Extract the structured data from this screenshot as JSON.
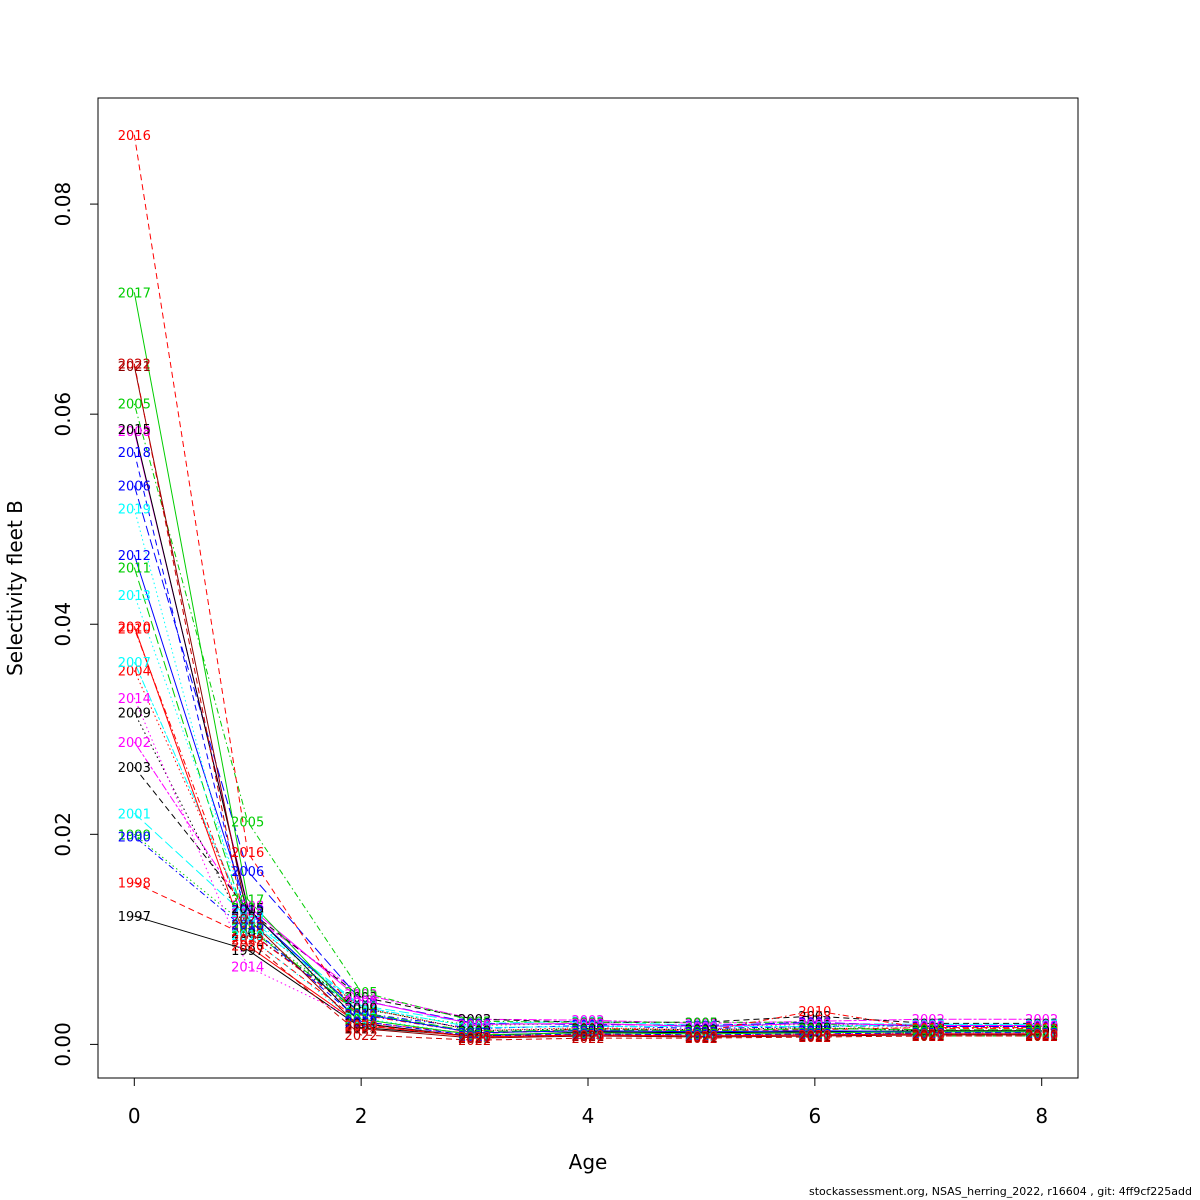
{
  "chart_data": {
    "type": "line",
    "xlabel": "Age",
    "ylabel": "Selectivity fleet B",
    "xlim": [
      -0.32,
      8.32
    ],
    "ylim": [
      -0.0032,
      0.0901
    ],
    "x_ticks": [
      "0",
      "2",
      "4",
      "6",
      "8"
    ],
    "y_ticks": [
      "0.00",
      "0.02",
      "0.04",
      "0.06",
      "0.08"
    ],
    "x": [
      0,
      1,
      2,
      3,
      4,
      5,
      6,
      7,
      8
    ],
    "grid": false,
    "legend": "none",
    "series": [
      {
        "name": "1997",
        "color": "#000000",
        "dash": "solid",
        "values": [
          0.0122,
          0.009,
          0.0016,
          0.0008,
          0.0012,
          0.0011,
          0.0012,
          0.0013,
          0.0013
        ]
      },
      {
        "name": "1998",
        "color": "#ff0000",
        "dash": "dashed",
        "values": [
          0.0154,
          0.0103,
          0.0021,
          0.001,
          0.0015,
          0.0013,
          0.0014,
          0.0016,
          0.0016
        ]
      },
      {
        "name": "1999",
        "color": "#00cd00",
        "dash": "dotted",
        "values": [
          0.02,
          0.0112,
          0.0033,
          0.0018,
          0.002,
          0.0017,
          0.0019,
          0.0017,
          0.0017
        ]
      },
      {
        "name": "2000",
        "color": "#0000ff",
        "dash": "dotdash",
        "values": [
          0.0198,
          0.0108,
          0.003,
          0.0015,
          0.0018,
          0.0015,
          0.0017,
          0.0018,
          0.0018
        ]
      },
      {
        "name": "2001",
        "color": "#00ffff",
        "dash": "longdash",
        "values": [
          0.022,
          0.0121,
          0.0037,
          0.002,
          0.0022,
          0.0018,
          0.002,
          0.0019,
          0.0019
        ]
      },
      {
        "name": "2002",
        "color": "#ff00ff",
        "dash": "twodash",
        "values": [
          0.0288,
          0.0125,
          0.0048,
          0.0024,
          0.0023,
          0.002,
          0.0022,
          0.0024,
          0.0024
        ]
      },
      {
        "name": "2003",
        "color": "#000000",
        "dash": "dashed",
        "values": [
          0.0264,
          0.0128,
          0.0045,
          0.0024,
          0.0021,
          0.0021,
          0.0027,
          0.002,
          0.002
        ]
      },
      {
        "name": "2004",
        "color": "#ff0000",
        "dash": "dotted",
        "values": [
          0.0356,
          0.0118,
          0.0035,
          0.0013,
          0.0016,
          0.0014,
          0.0015,
          0.0016,
          0.0016
        ]
      },
      {
        "name": "2005",
        "color": "#00cd00",
        "dash": "dotdash",
        "values": [
          0.061,
          0.0212,
          0.005,
          0.0022,
          0.0021,
          0.0021,
          0.0021,
          0.0008,
          0.0008
        ]
      },
      {
        "name": "2006",
        "color": "#0000ff",
        "dash": "longdash",
        "values": [
          0.0532,
          0.0165,
          0.0042,
          0.002,
          0.0019,
          0.0018,
          0.0021,
          0.0017,
          0.0017
        ]
      },
      {
        "name": "2007",
        "color": "#00ffff",
        "dash": "twodash",
        "values": [
          0.0364,
          0.0118,
          0.0036,
          0.0016,
          0.0017,
          0.0017,
          0.0017,
          0.0019,
          0.0019
        ]
      },
      {
        "name": "2008",
        "color": "#ff00ff",
        "dash": "solid",
        "values": [
          0.0584,
          0.0132,
          0.0042,
          0.0019,
          0.002,
          0.0017,
          0.002,
          0.0018,
          0.0018
        ]
      },
      {
        "name": "2009",
        "color": "#000000",
        "dash": "dotted",
        "values": [
          0.0316,
          0.0106,
          0.0035,
          0.0013,
          0.0015,
          0.0014,
          0.0016,
          0.0013,
          0.0013
        ]
      },
      {
        "name": "2010",
        "color": "#ff0000",
        "dash": "dotdash",
        "values": [
          0.0396,
          0.0108,
          0.0028,
          0.0011,
          0.0013,
          0.0012,
          0.0032,
          0.0015,
          0.0015
        ]
      },
      {
        "name": "2011",
        "color": "#00cd00",
        "dash": "longdash",
        "values": [
          0.0454,
          0.0111,
          0.003,
          0.0012,
          0.0014,
          0.0013,
          0.0015,
          0.0014,
          0.0014
        ]
      },
      {
        "name": "2012",
        "color": "#0000ff",
        "dash": "solid",
        "values": [
          0.0466,
          0.0128,
          0.0029,
          0.0011,
          0.0013,
          0.0012,
          0.0013,
          0.0012,
          0.0012
        ]
      },
      {
        "name": "2013",
        "color": "#00ffff",
        "dash": "dotted",
        "values": [
          0.0428,
          0.0126,
          0.0025,
          0.0009,
          0.0011,
          0.001,
          0.0011,
          0.0012,
          0.0012
        ]
      },
      {
        "name": "2014",
        "color": "#ff00ff",
        "dash": "dotted",
        "values": [
          0.033,
          0.0074,
          0.0022,
          0.0008,
          0.001,
          0.0009,
          0.001,
          0.0011,
          0.0011
        ]
      },
      {
        "name": "2015",
        "color": "#000000",
        "dash": "solid",
        "values": [
          0.0586,
          0.013,
          0.002,
          0.0007,
          0.0009,
          0.0008,
          0.0009,
          0.001,
          0.001
        ]
      },
      {
        "name": "2016",
        "color": "#ff0000",
        "dash": "dashed",
        "values": [
          0.0866,
          0.0183,
          0.0019,
          0.0007,
          0.0008,
          0.0008,
          0.0009,
          0.001,
          0.001
        ]
      },
      {
        "name": "2017",
        "color": "#00cd00",
        "dash": "solid",
        "values": [
          0.0716,
          0.0138,
          0.0024,
          0.0009,
          0.0011,
          0.001,
          0.0011,
          0.0012,
          0.0012
        ]
      },
      {
        "name": "2018",
        "color": "#0000ff",
        "dash": "dashed",
        "values": [
          0.0564,
          0.0114,
          0.0022,
          0.0008,
          0.001,
          0.0009,
          0.001,
          0.0011,
          0.0011
        ]
      },
      {
        "name": "2019",
        "color": "#00ffff",
        "dash": "dotted",
        "values": [
          0.051,
          0.0104,
          0.0018,
          0.0007,
          0.0009,
          0.0008,
          0.0009,
          0.001,
          0.001
        ]
      },
      {
        "name": "2020",
        "color": "#ff0000",
        "dash": "solid",
        "values": [
          0.0398,
          0.0094,
          0.0018,
          0.0007,
          0.0009,
          0.0008,
          0.0009,
          0.001,
          0.001
        ]
      },
      {
        "name": "2021",
        "color": "#8b0000",
        "dash": "solid",
        "values": [
          0.0646,
          0.012,
          0.0015,
          0.0006,
          0.0008,
          0.0007,
          0.0008,
          0.0009,
          0.0009
        ]
      },
      {
        "name": "2022",
        "color": "#cc0000",
        "dash": "dashed",
        "values": [
          0.0648,
          0.01,
          0.0009,
          0.0004,
          0.0006,
          0.0006,
          0.0007,
          0.0008,
          0.0008
        ]
      }
    ]
  },
  "footer": "stockassessment.org, NSAS_herring_2022, r16604 , git: 4ff9cf225add"
}
